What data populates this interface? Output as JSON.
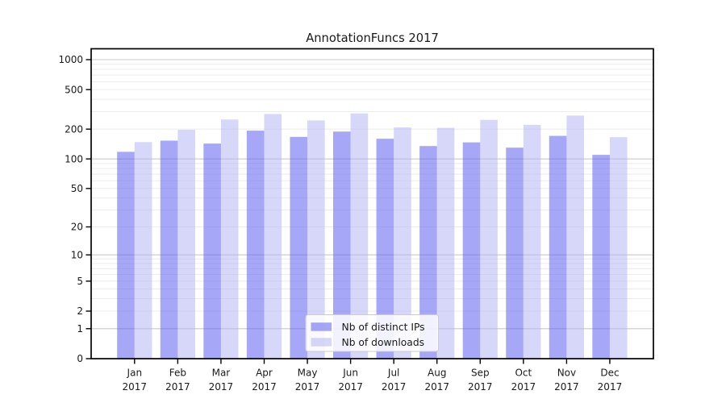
{
  "chart_data": {
    "type": "bar",
    "title": "AnnotationFuncs 2017",
    "scale": "log1p",
    "grid": true,
    "legend_position": "lower center",
    "categories": [
      "Jan",
      "Feb",
      "Mar",
      "Apr",
      "May",
      "Jun",
      "Jul",
      "Aug",
      "Sep",
      "Oct",
      "Nov",
      "Dec"
    ],
    "category_year": "2017",
    "series": [
      {
        "name": "Nb of distinct IPs",
        "color": "#a9a9f7",
        "fill": "rgba(98,98,241,0.56)",
        "values": [
          118,
          153,
          143,
          193,
          167,
          189,
          160,
          135,
          147,
          130,
          171,
          110
        ]
      },
      {
        "name": "Nb of downloads",
        "color": "#dbdbfa",
        "fill": "rgba(178,178,245,0.52)",
        "values": [
          148,
          197,
          250,
          284,
          245,
          288,
          208,
          206,
          248,
          221,
          274,
          166
        ]
      }
    ],
    "y_ticks": [
      0,
      1,
      2,
      5,
      10,
      20,
      50,
      100,
      200,
      500,
      1000
    ],
    "ylim": [
      0,
      1000
    ],
    "colors": {
      "grid_major": "#c8c8c8",
      "grid_minor": "#ededed",
      "spine": "#000000",
      "text": "#1a1a1a",
      "legend_border": "#cccccc",
      "legend_bg": "rgba(255,255,255,0.85)"
    }
  }
}
